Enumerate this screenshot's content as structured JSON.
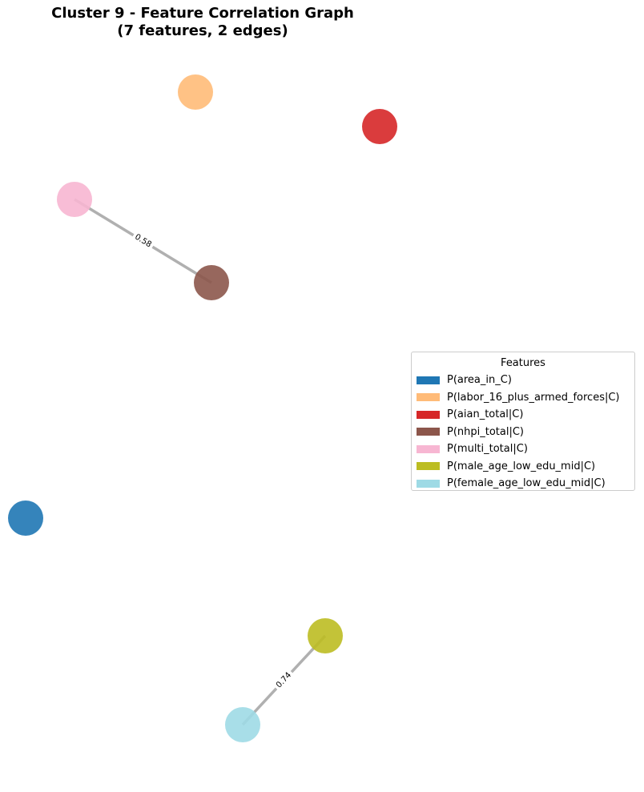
{
  "title": {
    "line1": "Cluster 9 - Feature Correlation Graph",
    "line2": "(7 features, 2 edges)"
  },
  "legend": {
    "title": "Features",
    "items": [
      {
        "label": "P(area_in_C)",
        "color": "#1f77b4"
      },
      {
        "label": "P(labor_16_plus_armed_forces|C)",
        "color": "#ffbb78"
      },
      {
        "label": "P(aian_total|C)",
        "color": "#d62728"
      },
      {
        "label": "P(nhpi_total|C)",
        "color": "#8c564b"
      },
      {
        "label": "P(multi_total|C)",
        "color": "#f7b6d2"
      },
      {
        "label": "P(male_age_low_edu_mid|C)",
        "color": "#bcbd22"
      },
      {
        "label": "P(female_age_low_edu_mid|C)",
        "color": "#9edae5"
      }
    ]
  },
  "graph": {
    "nodes": [
      {
        "id": "area_in_C",
        "color": "#1f77b4"
      },
      {
        "id": "labor_16_plus_armed_forces",
        "color": "#ffbb78"
      },
      {
        "id": "aian_total",
        "color": "#d62728"
      },
      {
        "id": "nhpi_total",
        "color": "#8c564b"
      },
      {
        "id": "multi_total",
        "color": "#f7b6d2"
      },
      {
        "id": "male_age_low_edu_mid",
        "color": "#bcbd22"
      },
      {
        "id": "female_age_low_edu_mid",
        "color": "#9edae5"
      }
    ],
    "edges": [
      {
        "source": "multi_total",
        "target": "nhpi_total",
        "weight": "0.58"
      },
      {
        "source": "male_age_low_edu_mid",
        "target": "female_age_low_edu_mid",
        "weight": "0.74"
      }
    ],
    "edge_color": "#b0b0b0"
  }
}
